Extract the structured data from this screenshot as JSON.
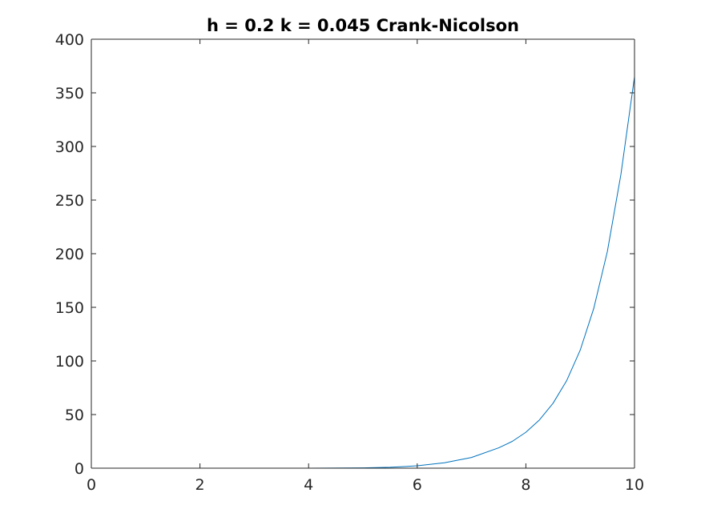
{
  "chart_data": {
    "type": "line",
    "title": "h = 0.2 k = 0.045 Crank-Nicolson",
    "xlabel": "",
    "ylabel": "",
    "xlim": [
      0,
      10
    ],
    "ylim": [
      0,
      400
    ],
    "xticks": [
      0,
      2,
      4,
      6,
      8,
      10
    ],
    "yticks": [
      0,
      50,
      100,
      150,
      200,
      250,
      300,
      350,
      400
    ],
    "xtick_labels": [
      "0",
      "2",
      "4",
      "6",
      "8",
      "10"
    ],
    "ytick_labels": [
      "0",
      "50",
      "100",
      "150",
      "200",
      "250",
      "300",
      "350",
      "400"
    ],
    "grid": false,
    "series": [
      {
        "color": "#0072BD",
        "x": [
          0,
          1,
          2,
          3,
          4,
          5,
          5.5,
          6,
          6.5,
          7,
          7.5,
          7.75,
          8,
          8.25,
          8.5,
          8.75,
          9,
          9.25,
          9.5,
          9.75,
          10
        ],
        "y": [
          0,
          0,
          0,
          0,
          0,
          0.3,
          0.8,
          2.2,
          5,
          10,
          19,
          25,
          33.5,
          45,
          60.5,
          81.5,
          110,
          149,
          202,
          274,
          365
        ]
      }
    ]
  }
}
